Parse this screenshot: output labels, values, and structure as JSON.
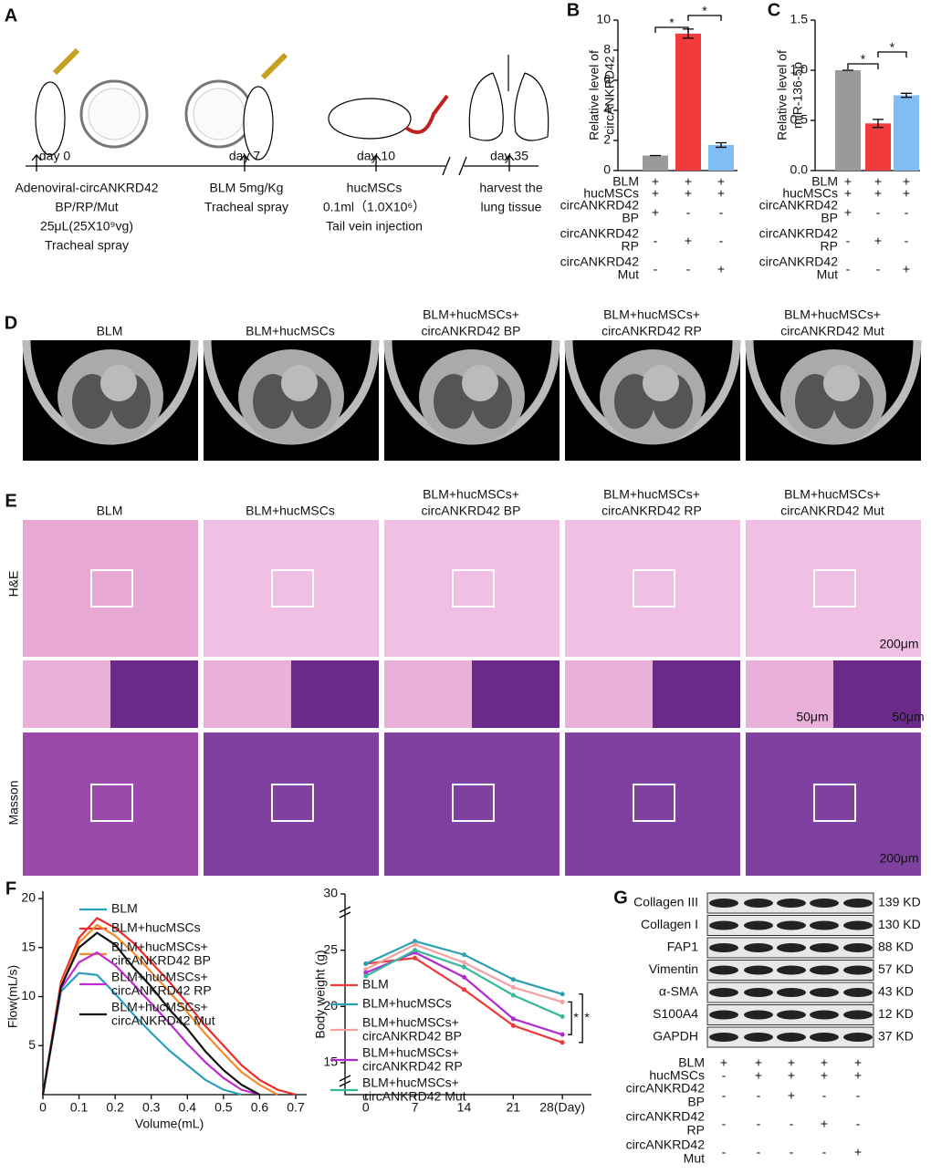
{
  "panel_labels": [
    "A",
    "B",
    "C",
    "D",
    "E",
    "F",
    "G"
  ],
  "panel_a": {
    "steps": [
      {
        "day": "day 0",
        "lines": [
          "Adenoviral-circANKRD42",
          "BP/RP/Mut",
          "25μL(25X10⁹vg)",
          "Tracheal spray"
        ]
      },
      {
        "day": "day 7",
        "lines": [
          "BLM 5mg/Kg",
          "Tracheal spray"
        ]
      },
      {
        "day": "day 10",
        "lines": [
          "hucMSCs",
          "0.1ml（1.0X10⁶）",
          "Tail vein injection"
        ]
      },
      {
        "day": "day 35",
        "lines": [
          "harvest the",
          "lung tissue"
        ]
      }
    ]
  },
  "chart_data": [
    {
      "type": "bar",
      "ylabel": [
        "Relative level of",
        "circANKRD42"
      ],
      "values": [
        1,
        9.1,
        1.7
      ],
      "errors": [
        0,
        0.3,
        0.15
      ],
      "colors": [
        "#9a9a9a",
        "#f43b3b",
        "#80bdf5"
      ],
      "ylim": [
        0,
        10
      ],
      "yticks": [
        0,
        2,
        4,
        6,
        8,
        10
      ],
      "significance": [
        "*",
        "*"
      ],
      "conditions": [
        {
          "name": [
            "BLM"
          ],
          "signs": [
            "+",
            "+",
            "+"
          ]
        },
        {
          "name": [
            "hucMSCs"
          ],
          "signs": [
            "+",
            "+",
            "+"
          ]
        },
        {
          "name": [
            "circANKRD42",
            "BP"
          ],
          "signs": [
            "+",
            "-",
            "-"
          ]
        },
        {
          "name": [
            "circANKRD42",
            "RP"
          ],
          "signs": [
            "-",
            "+",
            "-"
          ]
        },
        {
          "name": [
            "circANKRD42",
            "Mut"
          ],
          "signs": [
            "-",
            "-",
            "+"
          ]
        }
      ]
    },
    {
      "type": "bar",
      "ylabel": [
        "Relative level of",
        "miR-136-5p"
      ],
      "values": [
        1,
        0.47,
        0.75
      ],
      "errors": [
        0,
        0.04,
        0.02
      ],
      "colors": [
        "#9a9a9a",
        "#f43b3b",
        "#80bdf5"
      ],
      "ylim": [
        0,
        1.5
      ],
      "yticks": [
        {
          "value": 0,
          "label": "0.0"
        },
        {
          "value": 0.5,
          "label": "0.5"
        },
        {
          "value": 1,
          "label": "1.0"
        },
        {
          "value": 1.5,
          "label": "1.5"
        }
      ],
      "significance": [
        "*",
        "*"
      ],
      "conditions": [
        {
          "name": [
            "BLM"
          ],
          "signs": [
            "+",
            "+",
            "+"
          ]
        },
        {
          "name": [
            "hucMSCs"
          ],
          "signs": [
            "+",
            "+",
            "+"
          ]
        },
        {
          "name": [
            "circANKRD42",
            "BP"
          ],
          "signs": [
            "+",
            "-",
            "-"
          ]
        },
        {
          "name": [
            "circANKRD42",
            "RP"
          ],
          "signs": [
            "-",
            "+",
            "-"
          ]
        },
        {
          "name": [
            "circANKRD42",
            "Mut"
          ],
          "signs": [
            "-",
            "-",
            "+"
          ]
        }
      ]
    },
    {
      "type": "line",
      "xlabel": "Volume(mL)",
      "ylabel": "Flow(mL/s)",
      "x": [
        0,
        0.05,
        0.1,
        0.15,
        0.2,
        0.25,
        0.3,
        0.35,
        0.4,
        0.45,
        0.5,
        0.55,
        0.6,
        0.65,
        0.7
      ],
      "xlim": [
        0,
        0.7
      ],
      "xticks": [
        0,
        0.1,
        0.2,
        0.3,
        0.4,
        0.5,
        0.6,
        0.7
      ],
      "ylim": [
        0,
        20
      ],
      "yticks": [
        5,
        10,
        15,
        20
      ],
      "series": [
        {
          "name": [
            "BLM"
          ],
          "color": "#2aa0c0",
          "values": [
            0,
            10.5,
            12.4,
            12.2,
            10.3,
            8.2,
            6.3,
            4.5,
            3.0,
            1.5,
            0.5,
            0,
            null,
            null,
            null
          ]
        },
        {
          "name": [
            "BLM+hucMSCs"
          ],
          "color": "#ee2a2a",
          "values": [
            0,
            11.5,
            16,
            18,
            17,
            15.5,
            13.5,
            11.5,
            9.3,
            7,
            5,
            3,
            1.5,
            0.5,
            0
          ]
        },
        {
          "name": [
            "BLM+hucMSCs+",
            "circANKRD42 BP"
          ],
          "color": "#f68a2a",
          "values": [
            0,
            11.2,
            15.5,
            17.3,
            16.2,
            14.5,
            12.5,
            10.5,
            8.4,
            6.2,
            4.2,
            2.3,
            1,
            0,
            null
          ]
        },
        {
          "name": [
            "BLM+hucMSCs+",
            "circANKRD42 RP"
          ],
          "color": "#c02ad0",
          "values": [
            0,
            10.8,
            13.5,
            14.5,
            13.2,
            11.3,
            9.3,
            7.3,
            5.2,
            3.3,
            1.7,
            0.5,
            0,
            null,
            null
          ]
        },
        {
          "name": [
            "BLM+hucMSCs+",
            "circANKRD42 Mut"
          ],
          "color": "#111111",
          "values": [
            0,
            11,
            15,
            16.5,
            15.3,
            13,
            11,
            8.7,
            6.7,
            4.4,
            2.5,
            1,
            0,
            null,
            null
          ]
        }
      ]
    },
    {
      "type": "line",
      "ylabel": "Body weight (g)",
      "x": [
        0,
        7,
        14,
        21,
        28
      ],
      "xlim": [
        -1.4,
        29.8
      ],
      "xticks": [
        0,
        7,
        14,
        21,
        {
          "value": 28,
          "label": "28(Day)"
        }
      ],
      "ylim": [
        15,
        30
      ],
      "yticks": [
        15,
        20,
        25,
        30
      ],
      "significance": [
        "*",
        "*"
      ],
      "series": [
        {
          "name": [
            "BLM"
          ],
          "color": "#ee3a3a",
          "values": [
            23.8,
            24.3,
            21.5,
            18.3,
            16.8
          ]
        },
        {
          "name": [
            "BLM+hucMSCs"
          ],
          "color": "#2aa0b0",
          "values": [
            23.8,
            25.8,
            24.6,
            22.4,
            21.1
          ]
        },
        {
          "name": [
            "BLM+hucMSCs+",
            "circANKRD42 BP"
          ],
          "color": "#f4a0a0",
          "values": [
            23.3,
            25.5,
            23.9,
            21.7,
            20.4
          ]
        },
        {
          "name": [
            "BLM+hucMSCs+",
            "circANKRD42 RP"
          ],
          "color": "#b02ad0",
          "values": [
            23.0,
            24.8,
            22.6,
            18.9,
            17.5
          ]
        },
        {
          "name": [
            "BLM+hucMSCs+",
            "circANKRD42 Mut"
          ],
          "color": "#3ab89a",
          "values": [
            22.7,
            25.0,
            23.5,
            21.0,
            19.1
          ]
        }
      ]
    }
  ],
  "panel_d": {
    "titles": [
      [
        "BLM"
      ],
      [
        "BLM+hucMSCs"
      ],
      [
        "BLM+hucMSCs+",
        "circANKRD42 BP"
      ],
      [
        "BLM+hucMSCs+",
        "circANKRD42 RP"
      ],
      [
        "BLM+hucMSCs+",
        "circANKRD42 Mut"
      ]
    ]
  },
  "panel_e": {
    "titles": [
      [
        "BLM"
      ],
      [
        "BLM+hucMSCs"
      ],
      [
        "BLM+hucMSCs+",
        "circANKRD42 BP"
      ],
      [
        "BLM+hucMSCs+",
        "circANKRD42 RP"
      ],
      [
        "BLM+hucMSCs+",
        "circANKRD42 Mut"
      ]
    ],
    "row_labels": [
      "H&E",
      "Masson"
    ],
    "scale_bars": [
      "200μm",
      "50μm",
      "50μm",
      "200μm"
    ]
  },
  "panel_g": {
    "proteins": [
      {
        "name": "Collagen III",
        "size": "139 KD"
      },
      {
        "name": "Collagen I",
        "size": "130 KD"
      },
      {
        "name": "FAP1",
        "size": "88 KD"
      },
      {
        "name": "Vimentin",
        "size": "57 KD"
      },
      {
        "name": "α-SMA",
        "size": "43 KD"
      },
      {
        "name": "S100A4",
        "size": "12 KD"
      },
      {
        "name": "GAPDH",
        "size": "37 KD"
      }
    ],
    "conditions": [
      {
        "name": [
          "BLM"
        ],
        "signs": [
          "+",
          "+",
          "+",
          "+",
          "+"
        ]
      },
      {
        "name": [
          "hucMSCs"
        ],
        "signs": [
          "-",
          "+",
          "+",
          "+",
          "+"
        ]
      },
      {
        "name": [
          "circANKRD42",
          "BP"
        ],
        "signs": [
          "-",
          "-",
          "+",
          "-",
          "-"
        ]
      },
      {
        "name": [
          "circANKRD42",
          "RP"
        ],
        "signs": [
          "-",
          "-",
          "-",
          "+",
          "-"
        ]
      },
      {
        "name": [
          "circANKRD42",
          "Mut"
        ],
        "signs": [
          "-",
          "-",
          "-",
          "-",
          "+"
        ]
      }
    ]
  }
}
